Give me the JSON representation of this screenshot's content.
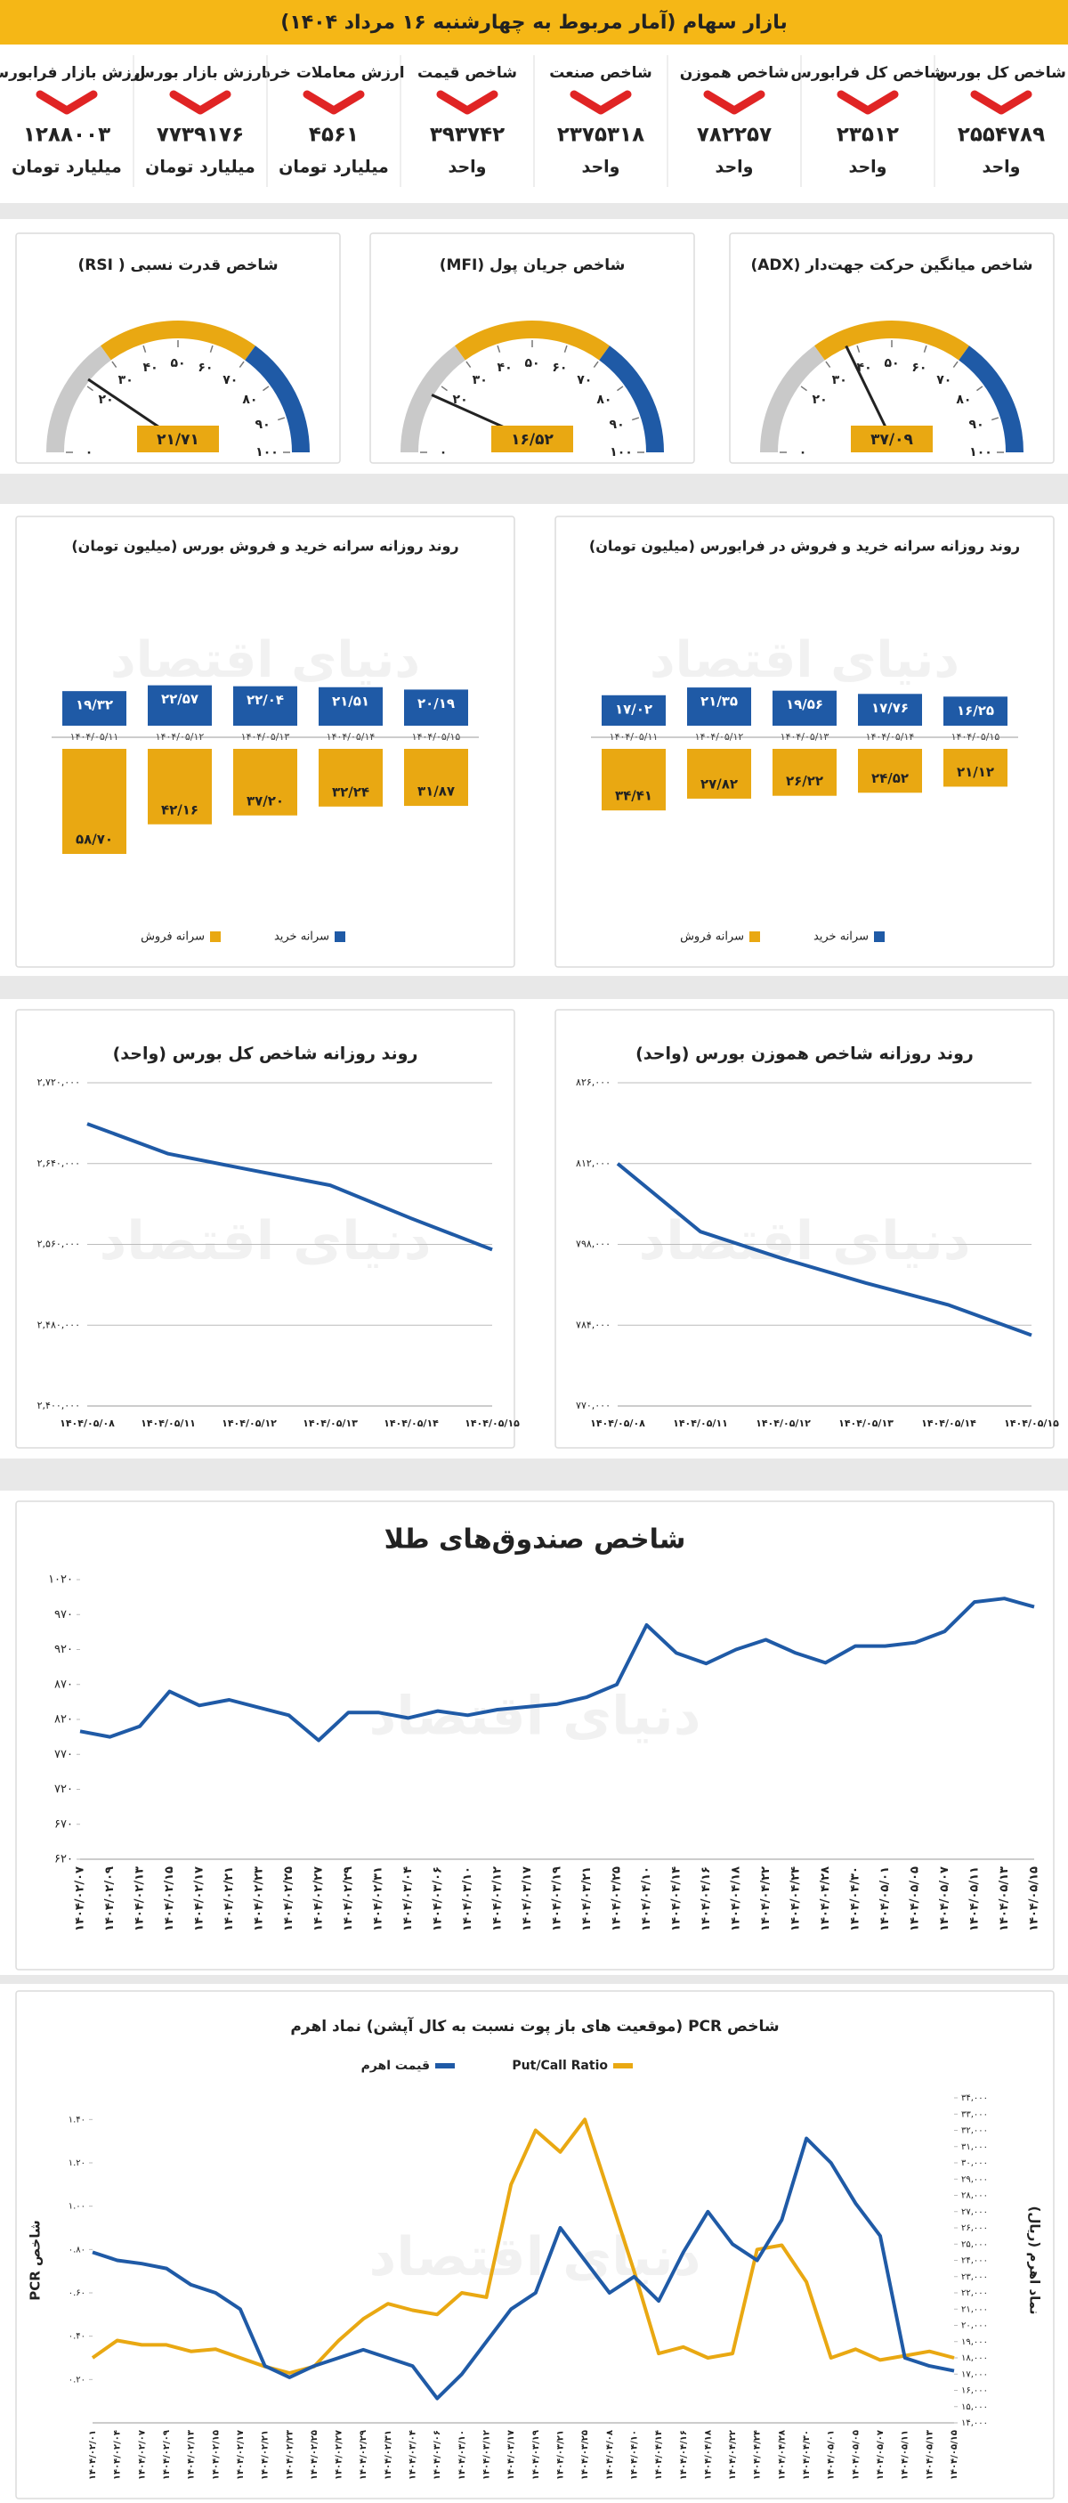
{
  "header": {
    "title": "بازار سهام (آمار مربوط به چهارشنبه ۱۶ مرداد ۱۴۰۴)"
  },
  "watermark": "دنیای اقتصاد",
  "stats": [
    {
      "title": "شاخص کل بورس",
      "value": "۲۵۵۴۷۸۹",
      "unit": "واحد"
    },
    {
      "title": "شاخص کل فرابورس",
      "value": "۲۳۵۱۲",
      "unit": "واحد"
    },
    {
      "title": "شاخص هموزن",
      "value": "۷۸۲۲۵۷",
      "unit": "واحد"
    },
    {
      "title": "شاخص صنعت",
      "value": "۲۳۷۵۳۱۸",
      "unit": "واحد"
    },
    {
      "title": "شاخص قیمت",
      "value": "۳۹۳۷۴۲",
      "unit": "واحد"
    },
    {
      "title": "ارزش معاملات خرد",
      "value": "۴۵۶۱",
      "unit": "میلیارد تومان"
    },
    {
      "title": "ارزش بازار بورس",
      "value": "۷۷۳۹۱۷۶",
      "unit": "میلیارد تومان"
    },
    {
      "title": "ارزش بازار فرابورس",
      "value": "۱۲۸۸۰۰۳",
      "unit": "میلیارد تومان"
    }
  ],
  "chart_data": [
    {
      "type": "gauge",
      "title": "شاخص میانگین حرکت جهت‌دار (ADX)",
      "value": 37.09,
      "value_label": "۳۷/۰۹",
      "ylim": [
        0,
        100
      ],
      "yticks": [
        {
          "value": 0,
          "label": "۰"
        },
        {
          "value": 20,
          "label": "۲۰"
        },
        {
          "value": 30,
          "label": "۳۰"
        },
        {
          "value": 40,
          "label": "۴۰"
        },
        {
          "value": 50,
          "label": "۵۰"
        },
        {
          "value": 60,
          "label": "۶۰"
        },
        {
          "value": 70,
          "label": "۷۰"
        },
        {
          "value": 80,
          "label": "۸۰"
        },
        {
          "value": 90,
          "label": "۹۰"
        },
        {
          "value": 100,
          "label": "۱۰۰"
        }
      ],
      "bands": [
        {
          "from": 0,
          "to": 30,
          "color": "#c9c9c9"
        },
        {
          "from": 30,
          "to": 70,
          "color": "#e9a812"
        },
        {
          "from": 70,
          "to": 100,
          "color": "#1f5aa6"
        }
      ],
      "color": "#e9a812"
    },
    {
      "type": "gauge",
      "title": "شاخص جریان پول (MFI)",
      "value": 16.52,
      "value_label": "۱۶/۵۲",
      "ylim": [
        0,
        100
      ],
      "yticks": [
        {
          "value": 0,
          "label": "۰"
        },
        {
          "value": 20,
          "label": "۲۰"
        },
        {
          "value": 30,
          "label": "۳۰"
        },
        {
          "value": 40,
          "label": "۴۰"
        },
        {
          "value": 50,
          "label": "۵۰"
        },
        {
          "value": 60,
          "label": "۶۰"
        },
        {
          "value": 70,
          "label": "۷۰"
        },
        {
          "value": 80,
          "label": "۸۰"
        },
        {
          "value": 90,
          "label": "۹۰"
        },
        {
          "value": 100,
          "label": "۱۰۰"
        }
      ],
      "bands": [
        {
          "from": 0,
          "to": 30,
          "color": "#c9c9c9"
        },
        {
          "from": 30,
          "to": 70,
          "color": "#e9a812"
        },
        {
          "from": 70,
          "to": 100,
          "color": "#1f5aa6"
        }
      ],
      "color": "#e9a812"
    },
    {
      "type": "gauge",
      "title": "شاخص قدرت نسبی ( RSI)",
      "value": 21.71,
      "value_label": "۲۱/۷۱",
      "ylim": [
        0,
        100
      ],
      "yticks": [
        {
          "value": 0,
          "label": "۰"
        },
        {
          "value": 20,
          "label": "۲۰"
        },
        {
          "value": 30,
          "label": "۳۰"
        },
        {
          "value": 40,
          "label": "۴۰"
        },
        {
          "value": 50,
          "label": "۵۰"
        },
        {
          "value": 60,
          "label": "۶۰"
        },
        {
          "value": 70,
          "label": "۷۰"
        },
        {
          "value": 80,
          "label": "۸۰"
        },
        {
          "value": 90,
          "label": "۹۰"
        },
        {
          "value": 100,
          "label": "۱۰۰"
        }
      ],
      "bands": [
        {
          "from": 0,
          "to": 30,
          "color": "#c9c9c9"
        },
        {
          "from": 30,
          "to": 70,
          "color": "#e9a812"
        },
        {
          "from": 70,
          "to": 100,
          "color": "#1f5aa6"
        }
      ],
      "color": "#e9a812"
    },
    {
      "type": "bar",
      "title": "روند روزانه سرانه خرید و فروش در فرابورس (میلیون تومان)",
      "legend": "bottom",
      "categories": [
        "۱۴۰۴/۰۵/۱۱",
        "۱۴۰۴/۰۵/۱۲",
        "۱۴۰۴/۰۵/۱۳",
        "۱۴۰۴/۰۵/۱۴",
        "۱۴۰۴/۰۵/۱۵"
      ],
      "series": [
        {
          "name": "سرانه خرید",
          "color": "#1f5aa6",
          "direction": "up",
          "values": [
            17.02,
            21.35,
            19.56,
            17.76,
            16.25
          ],
          "value_labels": [
            "۱۷/۰۲",
            "۲۱/۳۵",
            "۱۹/۵۶",
            "۱۷/۷۶",
            "۱۶/۲۵"
          ]
        },
        {
          "name": "سرانه فروش",
          "color": "#e9a812",
          "direction": "down",
          "values": [
            34.41,
            27.82,
            26.22,
            24.52,
            21.12
          ],
          "value_labels": [
            "۳۴/۴۱",
            "۲۷/۸۲",
            "۲۶/۲۲",
            "۲۴/۵۲",
            "۲۱/۱۲"
          ]
        }
      ]
    },
    {
      "type": "bar",
      "title": "روند روزانه سرانه خرید و فروش بورس (میلیون تومان)",
      "legend": "bottom",
      "categories": [
        "۱۴۰۴/۰۵/۱۱",
        "۱۴۰۴/۰۵/۱۲",
        "۱۴۰۴/۰۵/۱۳",
        "۱۴۰۴/۰۵/۱۴",
        "۱۴۰۴/۰۵/۱۵"
      ],
      "series": [
        {
          "name": "سرانه خرید",
          "color": "#1f5aa6",
          "direction": "up",
          "values": [
            19.32,
            22.57,
            22.04,
            21.51,
            20.19
          ],
          "value_labels": [
            "۱۹/۳۲",
            "۲۲/۵۷",
            "۲۲/۰۴",
            "۲۱/۵۱",
            "۲۰/۱۹"
          ]
        },
        {
          "name": "سرانه فروش",
          "color": "#e9a812",
          "direction": "down",
          "values": [
            58.7,
            42.16,
            37.2,
            32.24,
            31.87
          ],
          "value_labels": [
            "۵۸/۷۰",
            "۴۲/۱۶",
            "۳۷/۲۰",
            "۳۲/۲۴",
            "۳۱/۸۷"
          ]
        }
      ]
    },
    {
      "type": "line",
      "title": "روند روزانه شاخص هموزن بورس (واحد)",
      "grid": true,
      "categories": [
        "۱۴۰۴/۰۵/۰۸",
        "۱۴۰۴/۰۵/۱۱",
        "۱۴۰۴/۰۵/۱۲",
        "۱۴۰۴/۰۵/۱۳",
        "۱۴۰۴/۰۵/۱۴",
        "۱۴۰۴/۰۵/۱۵"
      ],
      "series": [
        {
          "color": "#1f5aa6",
          "values": [
            812000,
            800200,
            795500,
            791300,
            787500,
            782257
          ]
        }
      ],
      "ylim": [
        770000,
        826000
      ],
      "yticks": [
        {
          "value": 770000,
          "label": "۷۷۰,۰۰۰"
        },
        {
          "value": 784000,
          "label": "۷۸۴,۰۰۰"
        },
        {
          "value": 798000,
          "label": "۷۹۸,۰۰۰"
        },
        {
          "value": 812000,
          "label": "۸۱۲,۰۰۰"
        },
        {
          "value": 826000,
          "label": "۸۲۶,۰۰۰"
        }
      ]
    },
    {
      "type": "line",
      "title": "روند روزانه شاخص کل بورس (واحد)",
      "grid": true,
      "categories": [
        "۱۴۰۴/۰۵/۰۸",
        "۱۴۰۴/۰۵/۱۱",
        "۱۴۰۴/۰۵/۱۲",
        "۱۴۰۴/۰۵/۱۳",
        "۱۴۰۴/۰۵/۱۴",
        "۱۴۰۴/۰۵/۱۵"
      ],
      "series": [
        {
          "color": "#1f5aa6",
          "values": [
            2679400,
            2649700,
            2634000,
            2618500,
            2585700,
            2554789
          ]
        }
      ],
      "ylim": [
        2400000,
        2720000
      ],
      "yticks": [
        {
          "value": 2400000,
          "label": "۲,۴۰۰,۰۰۰"
        },
        {
          "value": 2480000,
          "label": "۲,۴۸۰,۰۰۰"
        },
        {
          "value": 2560000,
          "label": "۲,۵۶۰,۰۰۰"
        },
        {
          "value": 2640000,
          "label": "۲,۶۴۰,۰۰۰"
        },
        {
          "value": 2720000,
          "label": "۲,۷۲۰,۰۰۰"
        }
      ]
    },
    {
      "type": "line",
      "title": "شاخص صندوق‌های طلا",
      "grid": false,
      "categories": [
        "۱۴۰۴/۰۲/۰۷",
        "۱۴۰۴/۰۲/۰۹",
        "۱۴۰۴/۰۲/۱۳",
        "۱۴۰۴/۰۲/۱۵",
        "۱۴۰۴/۰۲/۱۷",
        "۱۴۰۴/۰۲/۲۱",
        "۱۴۰۴/۰۲/۲۳",
        "۱۴۰۴/۰۲/۲۵",
        "۱۴۰۴/۰۲/۲۷",
        "۱۴۰۴/۰۲/۲۹",
        "۱۴۰۴/۰۲/۳۱",
        "۱۴۰۴/۰۳/۰۴",
        "۱۴۰۴/۰۳/۰۶",
        "۱۴۰۴/۰۳/۱۰",
        "۱۴۰۴/۰۳/۱۲",
        "۱۴۰۴/۰۳/۱۷",
        "۱۴۰۴/۰۳/۱۹",
        "۱۴۰۴/۰۳/۲۱",
        "۱۴۰۴/۰۳/۲۵",
        "۱۴۰۴/۰۴/۱۰",
        "۱۴۰۴/۰۴/۱۴",
        "۱۴۰۴/۰۴/۱۶",
        "۱۴۰۴/۰۴/۱۸",
        "۱۴۰۴/۰۴/۲۲",
        "۱۴۰۴/۰۴/۲۴",
        "۱۴۰۴/۰۴/۲۸",
        "۱۴۰۴/۰۴/۳۰",
        "۱۴۰۴/۰۵/۰۱",
        "۱۴۰۴/۰۵/۰۵",
        "۱۴۰۴/۰۵/۰۷",
        "۱۴۰۴/۰۵/۱۱",
        "۱۴۰۴/۰۵/۱۳",
        "۱۴۰۴/۰۵/۱۵"
      ],
      "series": [
        {
          "color": "#1f5aa6",
          "values": [
            803,
            795,
            810,
            860,
            840,
            848,
            837,
            826,
            790,
            830,
            830,
            822,
            832,
            826,
            834,
            838,
            842,
            852,
            870,
            955,
            915,
            900,
            920,
            934,
            915,
            901,
            925,
            925,
            930,
            946,
            988,
            993,
            981
          ]
        }
      ],
      "ylim": [
        620,
        1020
      ],
      "yticks": [
        {
          "value": 620,
          "label": "۶۲۰"
        },
        {
          "value": 670,
          "label": "۶۷۰"
        },
        {
          "value": 720,
          "label": "۷۲۰"
        },
        {
          "value": 770,
          "label": "۷۷۰"
        },
        {
          "value": 820,
          "label": "۸۲۰"
        },
        {
          "value": 870,
          "label": "۸۷۰"
        },
        {
          "value": 920,
          "label": "۹۲۰"
        },
        {
          "value": 970,
          "label": "۹۷۰"
        },
        {
          "value": 1020,
          "label": "۱۰۲۰"
        }
      ]
    },
    {
      "type": "line",
      "title": "شاخص PCR (موقعیت های باز پوت نسبت به کال آپشن) نماد اهرم",
      "grid": false,
      "legend": "top",
      "ylabel": "شاخص PCR",
      "y2label": "نماد اهرم (ریال)",
      "categories": [
        "۱۴۰۴/۰۲/۰۱",
        "۱۴۰۴/۰۲/۰۴",
        "۱۴۰۴/۰۲/۰۷",
        "۱۴۰۴/۰۲/۰۹",
        "۱۴۰۴/۰۲/۱۳",
        "۱۴۰۴/۰۲/۱۵",
        "۱۴۰۴/۰۲/۱۷",
        "۱۴۰۴/۰۲/۲۱",
        "۱۴۰۴/۰۲/۲۳",
        "۱۴۰۴/۰۲/۲۵",
        "۱۴۰۴/۰۲/۲۷",
        "۱۴۰۴/۰۲/۲۹",
        "۱۴۰۴/۰۲/۳۱",
        "۱۴۰۴/۰۳/۰۴",
        "۱۴۰۴/۰۳/۰۶",
        "۱۴۰۴/۰۳/۱۰",
        "۱۴۰۴/۰۳/۱۲",
        "۱۴۰۴/۰۳/۱۷",
        "۱۴۰۴/۰۳/۱۹",
        "۱۴۰۴/۰۳/۲۱",
        "۱۴۰۴/۰۳/۲۵",
        "۱۴۰۴/۰۴/۰۸",
        "۱۴۰۴/۰۴/۱۰",
        "۱۴۰۴/۰۴/۱۴",
        "۱۴۰۴/۰۴/۱۶",
        "۱۴۰۴/۰۴/۱۸",
        "۱۴۰۴/۰۴/۲۲",
        "۱۴۰۴/۰۴/۲۴",
        "۱۴۰۴/۰۴/۲۸",
        "۱۴۰۴/۰۴/۳۰",
        "۱۴۰۴/۰۵/۰۱",
        "۱۴۰۴/۰۵/۰۵",
        "۱۴۰۴/۰۵/۰۷",
        "۱۴۰۴/۰۵/۱۱",
        "۱۴۰۴/۰۵/۱۳",
        "۱۴۰۴/۰۵/۱۵"
      ],
      "series": [
        {
          "name": "Put/Call Ratio",
          "color": "#e9a812",
          "values": [
            0.3,
            0.38,
            0.36,
            0.36,
            0.33,
            0.34,
            0.3,
            0.26,
            0.23,
            0.26,
            0.38,
            0.48,
            0.55,
            0.52,
            0.5,
            0.6,
            0.58,
            1.1,
            1.35,
            1.25,
            1.4,
            1.05,
            0.7,
            0.32,
            0.35,
            0.3,
            0.32,
            0.8,
            0.82,
            0.65,
            0.3,
            0.34,
            0.29,
            0.31,
            0.33,
            0.3
          ]
        },
        {
          "name": "قیمت اهرم",
          "color": "#1f5aa6",
          "axis": "y2",
          "values": [
            24500,
            24000,
            23800,
            23500,
            22500,
            22000,
            21000,
            17500,
            16800,
            17500,
            18000,
            18500,
            18000,
            17500,
            15500,
            17000,
            19000,
            21000,
            22000,
            26000,
            24000,
            22000,
            23000,
            21500,
            24500,
            27000,
            25000,
            24000,
            26500,
            31500,
            30000,
            27500,
            25500,
            18000,
            17500,
            17200
          ]
        }
      ],
      "ylim": [
        0,
        1.5
      ],
      "yticks": [
        {
          "value": 0.2,
          "label": "۰.۲۰"
        },
        {
          "value": 0.4,
          "label": "۰.۴۰"
        },
        {
          "value": 0.6,
          "label": "۰.۶۰"
        },
        {
          "value": 0.8,
          "label": "۰.۸۰"
        },
        {
          "value": 1.0,
          "label": "۱.۰۰"
        },
        {
          "value": 1.2,
          "label": "۱.۲۰"
        },
        {
          "value": 1.4,
          "label": "۱.۴۰"
        }
      ],
      "y2lim": [
        14000,
        34000
      ],
      "y2ticks": [
        {
          "value": 14000,
          "label": "۱۴,۰۰۰"
        },
        {
          "value": 15000,
          "label": "۱۵,۰۰۰"
        },
        {
          "value": 16000,
          "label": "۱۶,۰۰۰"
        },
        {
          "value": 17000,
          "label": "۱۷,۰۰۰"
        },
        {
          "value": 18000,
          "label": "۱۸,۰۰۰"
        },
        {
          "value": 19000,
          "label": "۱۹,۰۰۰"
        },
        {
          "value": 20000,
          "label": "۲۰,۰۰۰"
        },
        {
          "value": 21000,
          "label": "۲۱,۰۰۰"
        },
        {
          "value": 22000,
          "label": "۲۲,۰۰۰"
        },
        {
          "value": 23000,
          "label": "۲۳,۰۰۰"
        },
        {
          "value": 24000,
          "label": "۲۴,۰۰۰"
        },
        {
          "value": 25000,
          "label": "۲۵,۰۰۰"
        },
        {
          "value": 26000,
          "label": "۲۶,۰۰۰"
        },
        {
          "value": 27000,
          "label": "۲۷,۰۰۰"
        },
        {
          "value": 28000,
          "label": "۲۸,۰۰۰"
        },
        {
          "value": 29000,
          "label": "۲۹,۰۰۰"
        },
        {
          "value": 30000,
          "label": "۳۰,۰۰۰"
        },
        {
          "value": 31000,
          "label": "۳۱,۰۰۰"
        },
        {
          "value": 32000,
          "label": "۳۲,۰۰۰"
        },
        {
          "value": 33000,
          "label": "۳۳,۰۰۰"
        },
        {
          "value": 34000,
          "label": "۳۴,۰۰۰"
        }
      ]
    }
  ]
}
